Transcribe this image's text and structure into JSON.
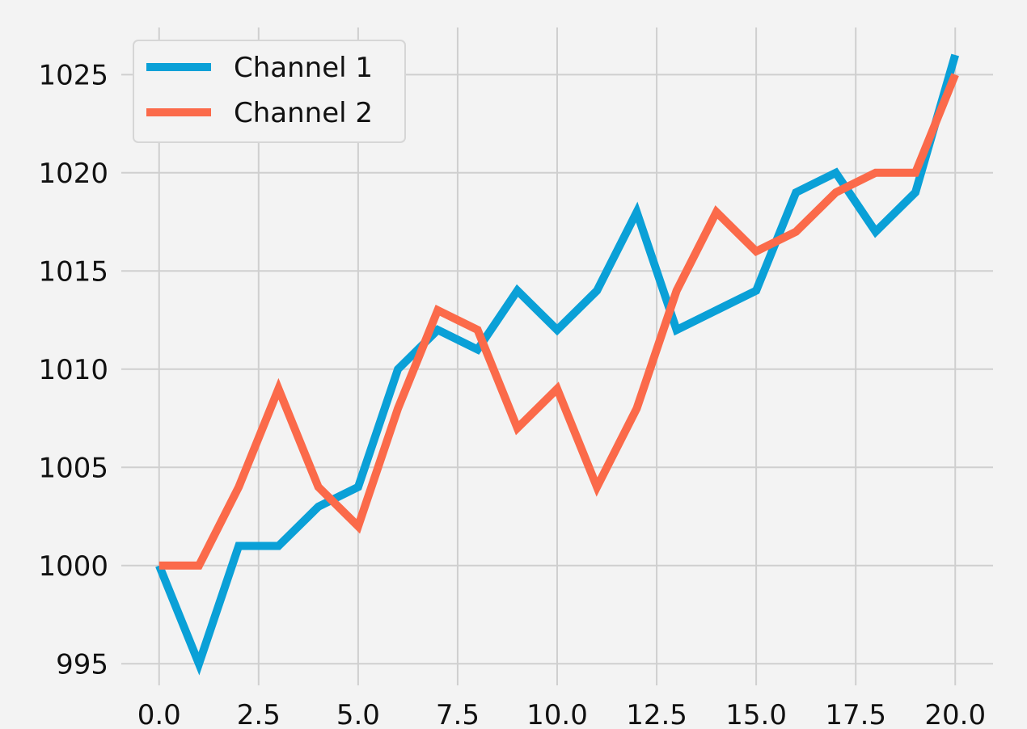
{
  "chart_data": {
    "type": "line",
    "title": "",
    "xlabel": "",
    "ylabel": "",
    "xlim": [
      -0.95,
      20.95
    ],
    "ylim": [
      993.9,
      1027.4
    ],
    "x_ticks": [
      0.0,
      2.5,
      5.0,
      7.5,
      10.0,
      12.5,
      15.0,
      17.5,
      20.0
    ],
    "x_tick_labels": [
      "0.0",
      "2.5",
      "5.0",
      "7.5",
      "10.0",
      "12.5",
      "15.0",
      "17.5",
      "20.0"
    ],
    "y_ticks": [
      995,
      1000,
      1005,
      1010,
      1015,
      1020,
      1025
    ],
    "y_tick_labels": [
      "995",
      "1000",
      "1005",
      "1010",
      "1015",
      "1020",
      "1025"
    ],
    "grid": true,
    "legend_position": "upper-left",
    "x": [
      0,
      1,
      2,
      3,
      4,
      5,
      6,
      7,
      8,
      9,
      10,
      11,
      12,
      13,
      14,
      15,
      16,
      17,
      18,
      19,
      20
    ],
    "series": [
      {
        "name": "Channel 1",
        "color": "#0aa0d7",
        "values": [
          1000,
          995,
          1001,
          1001,
          1003,
          1004,
          1010,
          1012,
          1011,
          1014,
          1012,
          1014,
          1018,
          1012,
          1013,
          1014,
          1019,
          1020,
          1017,
          1019,
          1026
        ]
      },
      {
        "name": "Channel 2",
        "color": "#fb6a4a",
        "values": [
          1000,
          1000,
          1004,
          1009,
          1004,
          1002,
          1008,
          1013,
          1012,
          1007,
          1009,
          1004,
          1008,
          1014,
          1018,
          1016,
          1017,
          1019,
          1020,
          1020,
          1025
        ]
      }
    ]
  }
}
